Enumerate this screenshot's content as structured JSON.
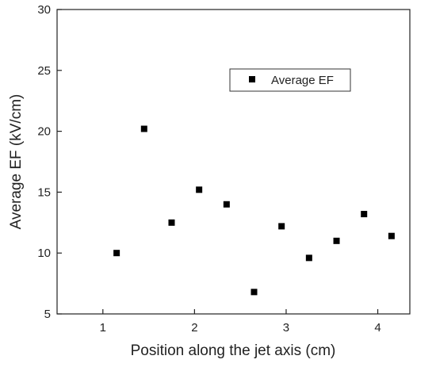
{
  "chart_data": {
    "type": "scatter",
    "title": "",
    "xlabel": "Position along the jet axis (cm)",
    "ylabel": "Average EF (kV/cm)",
    "xlim": [
      0.5,
      4.35
    ],
    "ylim": [
      5,
      30
    ],
    "xticks": [
      1,
      2,
      3,
      4
    ],
    "xtick_labels": [
      "1",
      "2",
      "3",
      "4"
    ],
    "yticks": [
      5,
      10,
      15,
      20,
      25,
      30
    ],
    "ytick_labels": [
      "5",
      "10",
      "15",
      "20",
      "25",
      "30"
    ],
    "grid": false,
    "legend_placement": "top-right",
    "marker": "square",
    "marker_color": "#000000",
    "series": [
      {
        "name": "Average EF",
        "x": [
          1.15,
          1.45,
          1.75,
          2.05,
          2.35,
          2.65,
          2.95,
          3.25,
          3.55,
          3.85,
          4.15
        ],
        "y": [
          10.0,
          20.2,
          12.5,
          15.2,
          14.0,
          6.8,
          12.2,
          9.6,
          11.0,
          13.2,
          11.4
        ]
      }
    ]
  }
}
